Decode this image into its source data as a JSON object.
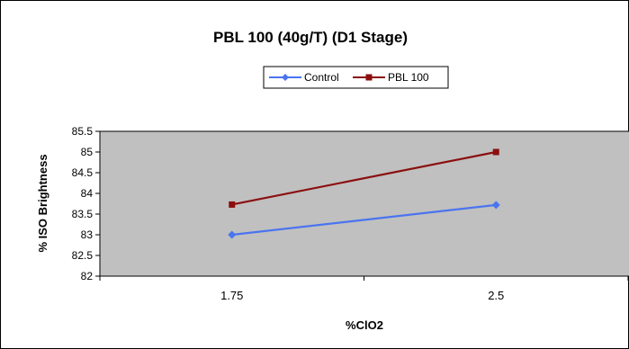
{
  "chart_data": {
    "type": "line",
    "title": "PBL 100 (40g/T) (D1 Stage)",
    "xlabel": "%ClO2",
    "ylabel": "% ISO Brightness",
    "categories": [
      "1.75",
      "2.5"
    ],
    "ylim": [
      82,
      85.5
    ],
    "yticks": [
      "82",
      "82.5",
      "83",
      "83.5",
      "84",
      "84.5",
      "85",
      "85.5"
    ],
    "grid": false,
    "legend_position": "top-center",
    "series": [
      {
        "name": "Control",
        "values": [
          83.0,
          83.72
        ],
        "color": "#4a74f0",
        "marker": "diamond"
      },
      {
        "name": "PBL 100",
        "values": [
          83.73,
          85.0
        ],
        "color": "#8b0f0f",
        "marker": "square"
      }
    ],
    "colors": {
      "plot_background": "#c0c0c0",
      "frame": "#000000"
    }
  }
}
